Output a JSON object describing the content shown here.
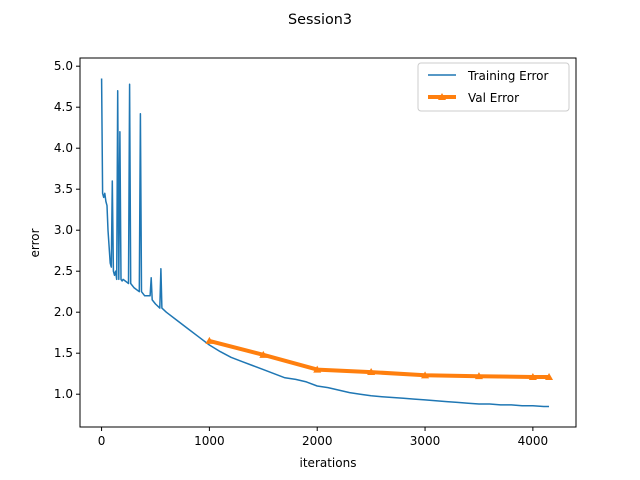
{
  "chart_data": {
    "type": "line",
    "title": "Session3",
    "xlabel": "iterations",
    "ylabel": "error",
    "xlim": [
      -200,
      4400
    ],
    "ylim": [
      0.6,
      5.1
    ],
    "x_ticks": [
      0,
      1000,
      2000,
      3000,
      4000
    ],
    "y_ticks": [
      1.0,
      1.5,
      2.0,
      2.5,
      3.0,
      3.5,
      4.0,
      4.5,
      5.0
    ],
    "x_tick_labels": [
      "0",
      "1000",
      "2000",
      "3000",
      "4000"
    ],
    "y_tick_labels": [
      "1.0",
      "1.5",
      "2.0",
      "2.5",
      "3.0",
      "3.5",
      "4.0",
      "4.5",
      "5.0"
    ],
    "grid": false,
    "legend_position": "top-right",
    "colors": {
      "training": "#1f77b4",
      "val": "#ff7f0e"
    },
    "series": [
      {
        "name": "Training Error",
        "x": [
          0,
          10,
          20,
          30,
          40,
          50,
          60,
          70,
          80,
          90,
          100,
          110,
          120,
          130,
          140,
          150,
          160,
          170,
          180,
          190,
          200,
          250,
          260,
          270,
          300,
          350,
          360,
          370,
          400,
          450,
          460,
          470,
          500,
          540,
          550,
          560,
          600,
          700,
          800,
          900,
          1000,
          1100,
          1200,
          1300,
          1400,
          1500,
          1600,
          1700,
          1800,
          1900,
          2000,
          2100,
          2200,
          2300,
          2400,
          2500,
          2600,
          2700,
          2800,
          2900,
          3000,
          3100,
          3200,
          3300,
          3400,
          3500,
          3600,
          3700,
          3800,
          3900,
          4000,
          4100,
          4150
        ],
        "values": [
          4.85,
          3.45,
          3.4,
          3.45,
          3.35,
          3.3,
          3.0,
          2.8,
          2.6,
          2.55,
          3.6,
          2.5,
          2.45,
          2.5,
          2.4,
          4.7,
          2.4,
          4.2,
          2.4,
          2.38,
          2.4,
          2.35,
          4.78,
          2.35,
          2.3,
          2.25,
          4.42,
          2.25,
          2.2,
          2.2,
          2.42,
          2.15,
          2.1,
          2.05,
          2.53,
          2.05,
          2.0,
          1.9,
          1.8,
          1.7,
          1.6,
          1.52,
          1.45,
          1.4,
          1.35,
          1.3,
          1.25,
          1.2,
          1.18,
          1.15,
          1.1,
          1.08,
          1.05,
          1.02,
          1.0,
          0.98,
          0.97,
          0.96,
          0.95,
          0.94,
          0.93,
          0.92,
          0.91,
          0.9,
          0.89,
          0.88,
          0.88,
          0.87,
          0.87,
          0.86,
          0.86,
          0.85,
          0.85
        ]
      },
      {
        "name": "Val Error",
        "x": [
          1000,
          1500,
          2000,
          2500,
          3000,
          3500,
          4000,
          4150
        ],
        "values": [
          1.65,
          1.48,
          1.3,
          1.27,
          1.23,
          1.22,
          1.21,
          1.21
        ]
      }
    ]
  }
}
